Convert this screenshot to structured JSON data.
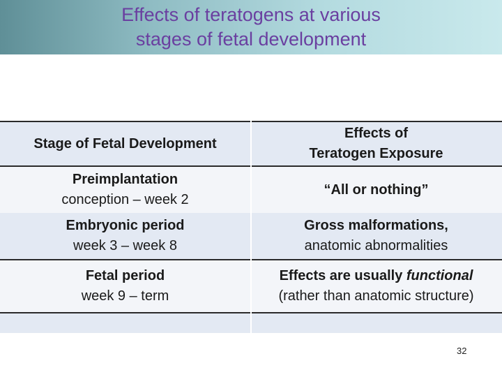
{
  "title": {
    "line1": "Effects of teratogens at various",
    "line2": "stages of fetal development"
  },
  "table": {
    "headers": {
      "stage": "Stage of Fetal Development",
      "effects_line1": "Effects of",
      "effects_line2": "Teratogen Exposure"
    },
    "rows": [
      {
        "stage_name": "Preimplantation",
        "stage_range": "conception – week 2",
        "effect_line1": "“All or nothing”"
      },
      {
        "stage_name": "Embryonic period",
        "stage_range": "week 3 – week 8",
        "effect_line1": "Gross malformations,",
        "effect_line2": "anatomic abnormalities"
      },
      {
        "stage_name": "Fetal period",
        "stage_range": "week 9 – term",
        "effect_prefix": "Effects are usually ",
        "effect_emphasis": "functional",
        "effect_line2": "(rather than anatomic structure)"
      }
    ]
  },
  "page_number": "32",
  "colors": {
    "title_text": "#6a3fa0",
    "title_bar_start": "#5f8f97",
    "title_bar_end": "#c9e9ec",
    "row_dark": "#e3e9f3",
    "row_light": "#f3f5f9"
  }
}
